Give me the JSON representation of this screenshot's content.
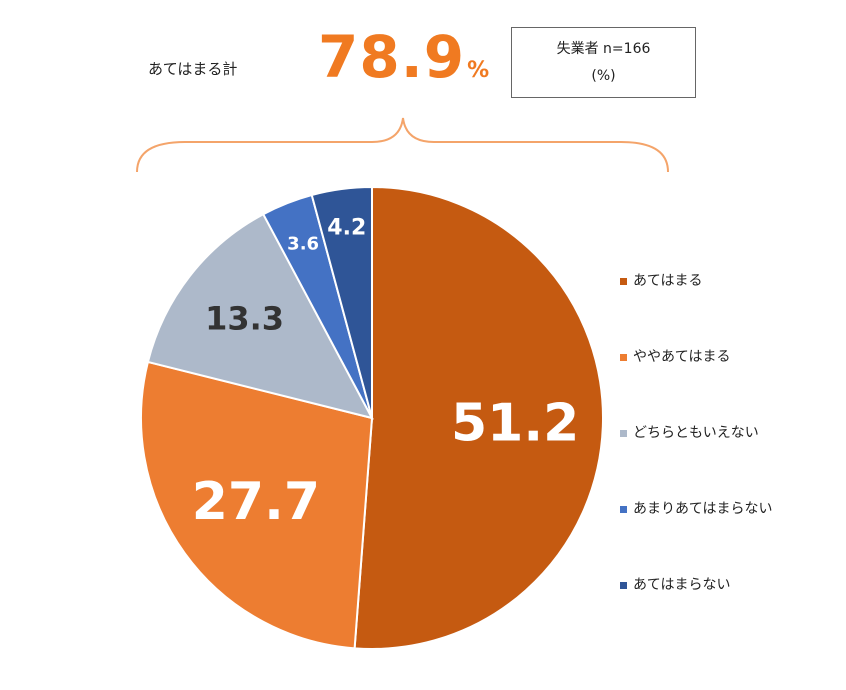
{
  "summary": {
    "label": "あてはまる計",
    "value": "78.9",
    "unit": "%"
  },
  "sample": {
    "line1": "失業者 n=166",
    "line2": "(%)"
  },
  "chart_data": {
    "type": "pie",
    "start_angle_deg": 0,
    "direction": "clockwise",
    "slices": [
      {
        "label": "あてはまる",
        "value": 51.2,
        "display": "51.2",
        "color": "#c55a11",
        "text_color": "#ffffff"
      },
      {
        "label": "ややあてはまる",
        "value": 27.7,
        "display": "27.7",
        "color": "#ed7d31",
        "text_color": "#ffffff"
      },
      {
        "label": "どちらともいえない",
        "value": 13.3,
        "display": "13.3",
        "color": "#adb9ca",
        "text_color": "#333333"
      },
      {
        "label": "あまりあてはまらない",
        "value": 3.6,
        "display": "3.6",
        "color": "#4472c4",
        "text_color": "#ffffff"
      },
      {
        "label": "あてはまらない",
        "value": 4.2,
        "display": "4.2",
        "color": "#2f5597",
        "text_color": "#ffffff"
      }
    ],
    "legend_position": "right"
  }
}
